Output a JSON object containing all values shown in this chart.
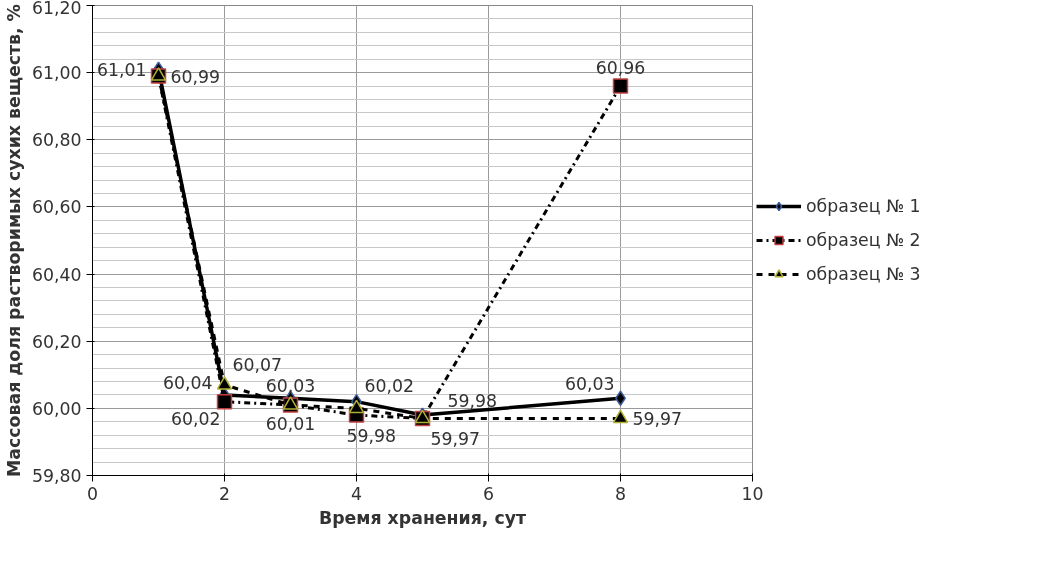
{
  "chart_data": {
    "type": "line",
    "xlabel": "Время хранения, сут",
    "ylabel": "Массовая доля растворимых сухих веществ, %",
    "x": [
      1,
      2,
      3,
      4,
      5,
      8
    ],
    "xlim": [
      0,
      10
    ],
    "xticks": [
      0,
      2,
      4,
      6,
      8,
      10
    ],
    "ylim": [
      59.8,
      61.2
    ],
    "yticks": [
      {
        "value": 59.8,
        "label": "59,80"
      },
      {
        "value": 60.0,
        "label": "60,00"
      },
      {
        "value": 60.2,
        "label": "60,20"
      },
      {
        "value": 60.4,
        "label": "60,40"
      },
      {
        "value": 60.6,
        "label": "60,60"
      },
      {
        "value": 60.8,
        "label": "60,80"
      },
      {
        "value": 61.0,
        "label": "61,00"
      },
      {
        "value": 61.2,
        "label": "61,20"
      }
    ],
    "grid": true,
    "legend": "right",
    "series": [
      {
        "name": "образец № 1",
        "color": "#000000",
        "marker": "diamond",
        "line_style": "solid",
        "values": [
          61.01,
          60.04,
          60.03,
          60.02,
          59.98,
          60.03
        ],
        "value_labels": [
          "61,01",
          "60,04",
          "60,03",
          "60,02",
          "59,98",
          "60,03"
        ]
      },
      {
        "name": "образец № 2",
        "color": "#000000",
        "marker": "square",
        "line_style": "dashdot",
        "values": [
          60.99,
          60.02,
          60.01,
          59.98,
          59.97,
          60.96
        ],
        "value_labels": [
          "60,99",
          "60,02",
          "60,01",
          "59,98",
          "59,97",
          "60,96"
        ]
      },
      {
        "name": "образец № 3",
        "color": "#000000",
        "marker": "triangle",
        "line_style": "dashed",
        "values": [
          60.99,
          60.07,
          60.01,
          60.0,
          59.97,
          59.97
        ],
        "value_labels": [
          null,
          "60,07",
          null,
          null,
          null,
          "59,97"
        ]
      }
    ]
  }
}
